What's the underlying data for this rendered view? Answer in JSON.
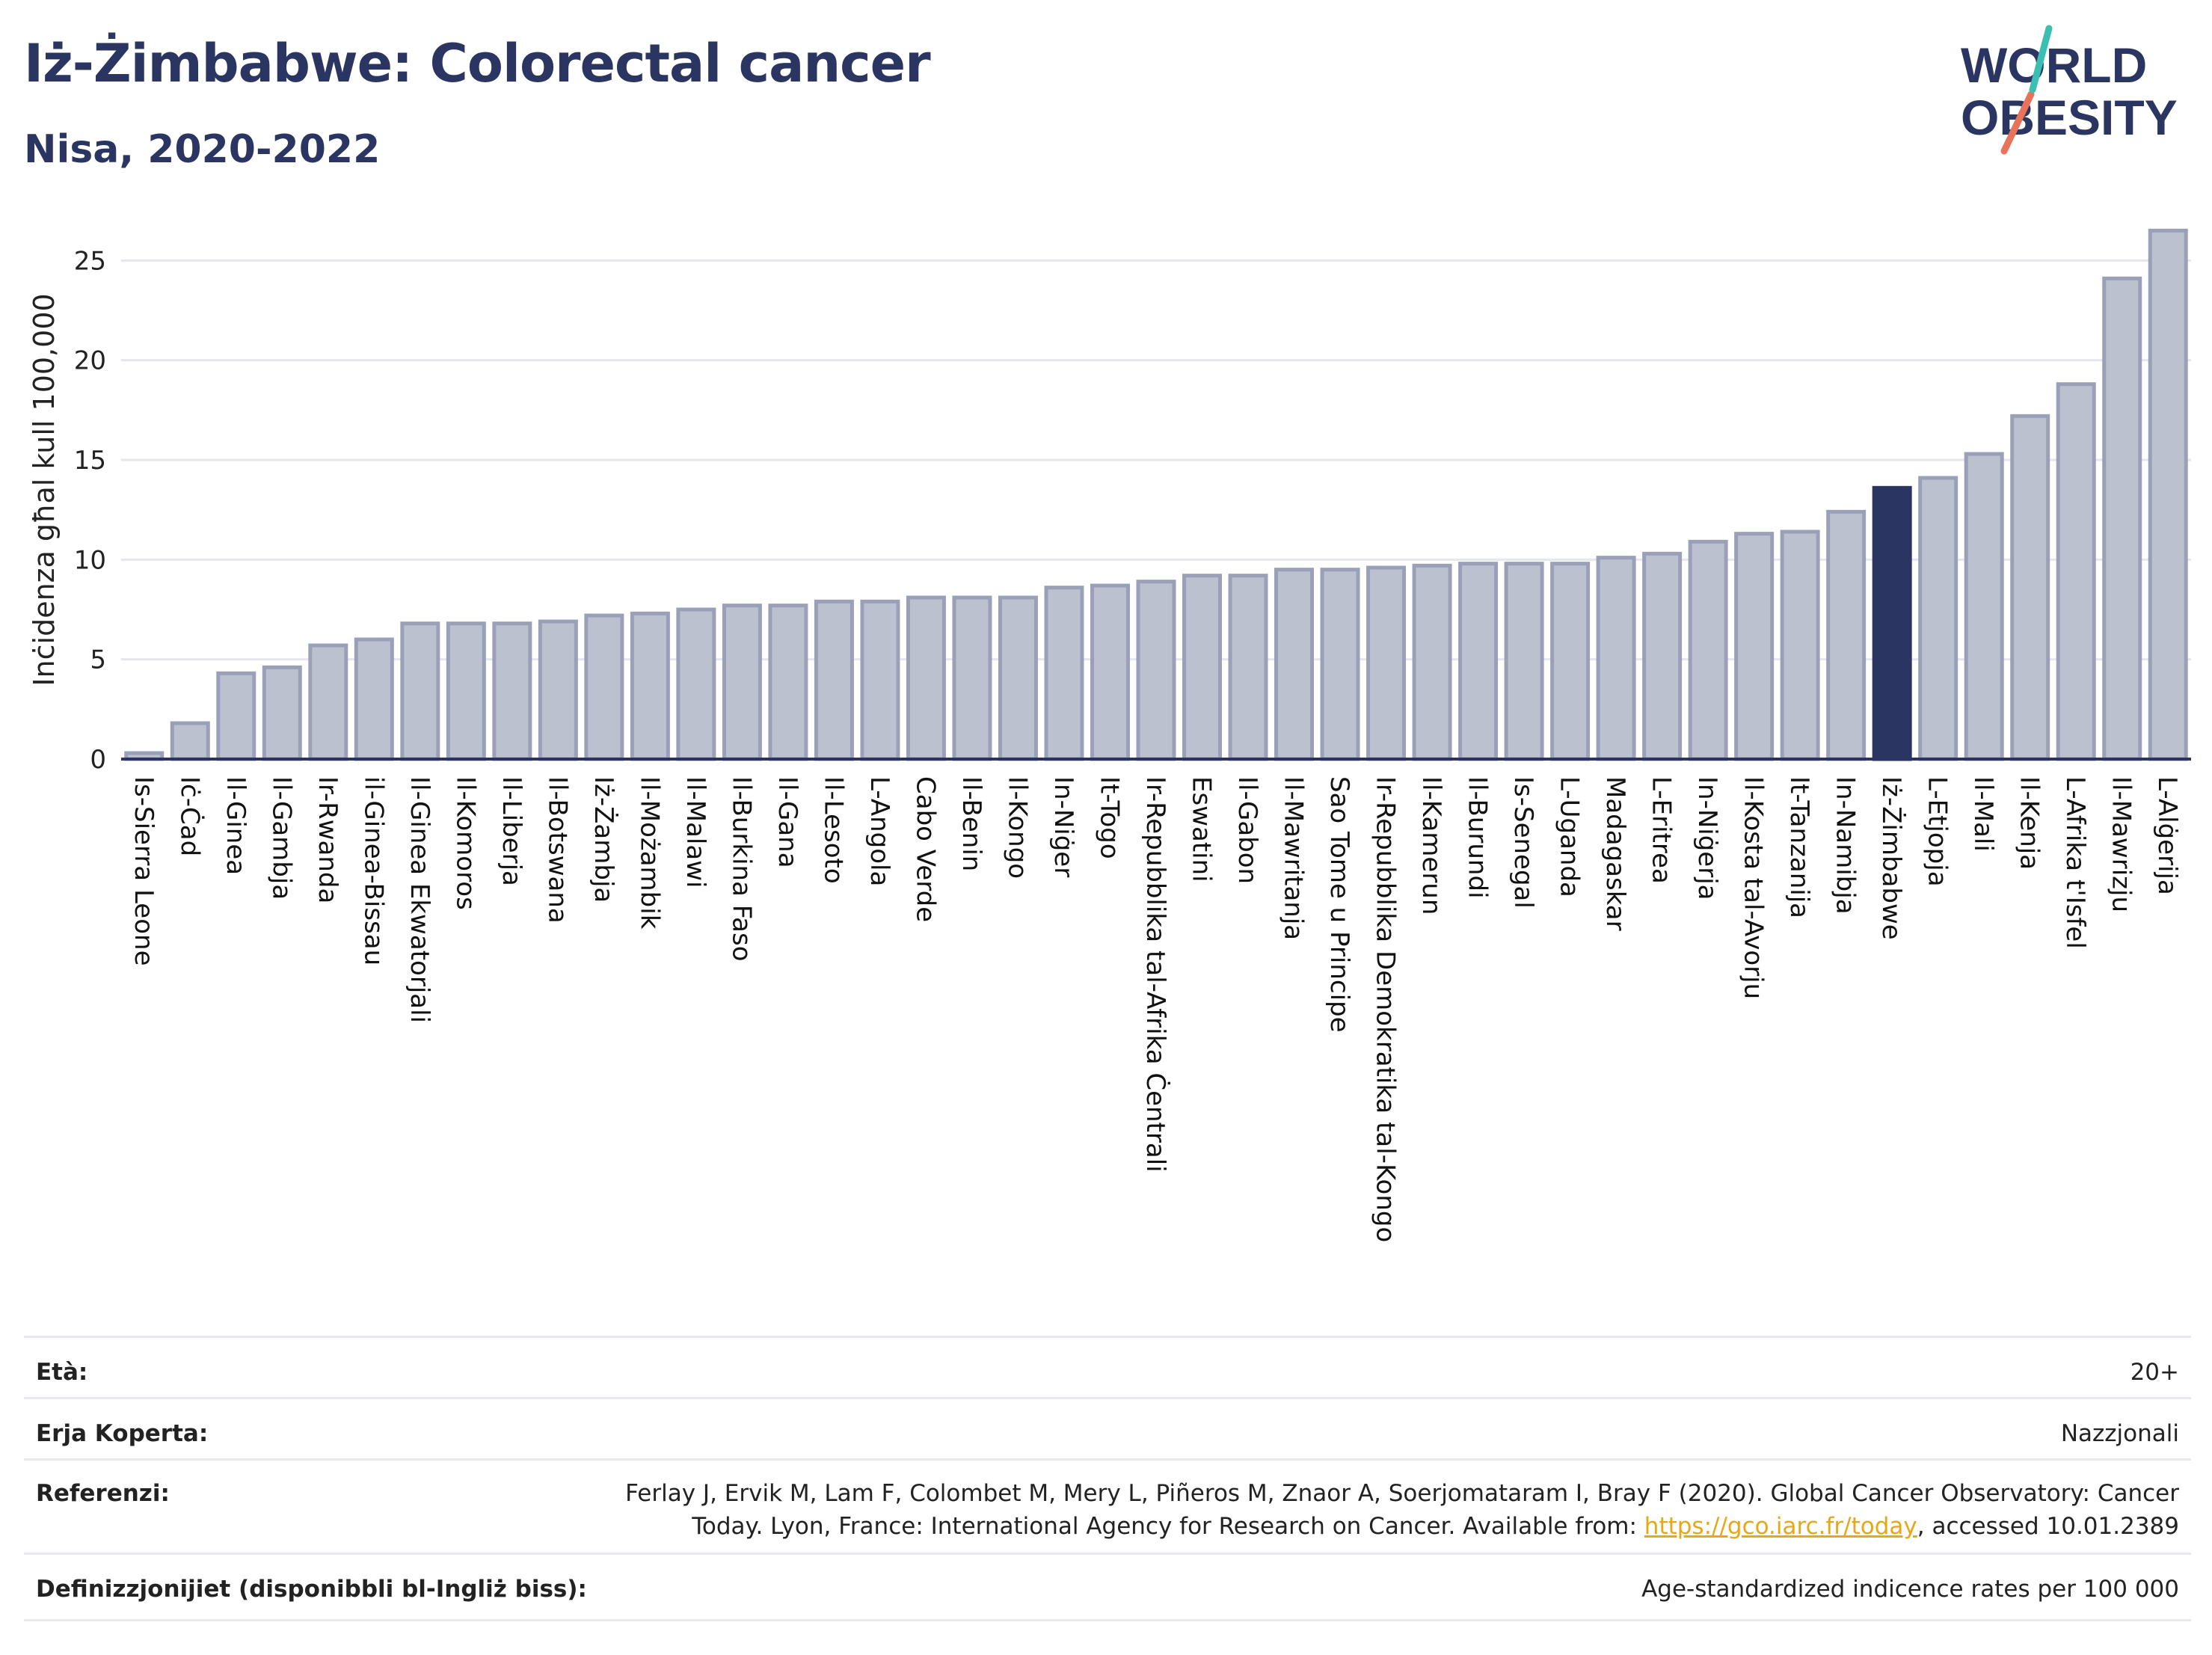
{
  "header": {
    "title": "Iż-Żimbabwe: Colorectal cancer",
    "subtitle": "Nisa, 2020-2022",
    "logo_line1": "WORLD",
    "logo_line2": "OBESITY"
  },
  "colors": {
    "bar": "#bcc1d0",
    "bar_stroke": "#9aa0b8",
    "highlight": "#2b3561",
    "grid": "#e6e6ee",
    "text": "#2b3561",
    "logo_teal": "#3bbfb3",
    "logo_coral": "#e8735a"
  },
  "chart_data": {
    "type": "bar",
    "ylabel": "Inċidenza għal kull 100,000",
    "ylim": [
      0,
      27
    ],
    "yticks": [
      0,
      5,
      10,
      15,
      20,
      25
    ],
    "grid": true,
    "highlight": "Iż-Żimbabwe",
    "categories": [
      "Is-Sierra Leone",
      "Iċ-Ċad",
      "Il-Ginea",
      "Il-Gambja",
      "Ir-Rwanda",
      "il-Ginea-Bissau",
      "Il-Ginea Ekwatorjali",
      "Il-Komoros",
      "Il-Liberja",
      "Il-Botswana",
      "Iż-Żambja",
      "Il-Możambik",
      "Il-Malawi",
      "Il-Burkina Faso",
      "Il-Gana",
      "Il-Lesoto",
      "L-Angola",
      "Cabo Verde",
      "Il-Benin",
      "Il-Kongo",
      "In-Niġer",
      "It-Togo",
      "Ir-Repubblika tal-Afrika Ċentrali",
      "Eswatini",
      "Il-Gabon",
      "Il-Mawritanja",
      "Sao Tome u Principe",
      "Ir-Repubblika Demokratika tal-Kongo",
      "Il-Kamerun",
      "Il-Burundi",
      "Is-Senegal",
      "L-Uganda",
      "Madagaskar",
      "L-Eritrea",
      "In-Niġerja",
      "Il-Kosta tal-Avorju",
      "It-Tanzanija",
      "In-Namibja",
      "Iż-Żimbabwe",
      "L-Etjopja",
      "Il-Mali",
      "Il-Kenja",
      "L-Afrika t'Isfel",
      "Il-Mawrizju",
      "L-Alġerija"
    ],
    "values": [
      0.3,
      1.8,
      4.3,
      4.6,
      5.7,
      6.0,
      6.8,
      6.8,
      6.8,
      6.9,
      7.2,
      7.3,
      7.5,
      7.7,
      7.7,
      7.9,
      7.9,
      8.1,
      8.1,
      8.1,
      8.6,
      8.7,
      8.9,
      9.2,
      9.2,
      9.5,
      9.5,
      9.6,
      9.7,
      9.8,
      9.8,
      9.8,
      10.1,
      10.3,
      10.9,
      11.3,
      11.4,
      12.4,
      13.6,
      14.1,
      15.3,
      17.2,
      18.8,
      24.1,
      26.5
    ]
  },
  "meta": {
    "age_label": "Età:",
    "age_value": "20+",
    "area_label": "Erja Koperta:",
    "area_value": "Nazzjonali",
    "ref_label": "Referenzi:",
    "ref_line1": "Ferlay J, Ervik M, Lam F, Colombet M, Mery L, Piñeros M, Znaor A, Soerjomataram I, Bray F (2020). Global Cancer Observatory: Cancer",
    "ref_line2a": "Today. Lyon, France: International Agency for Research on Cancer. Available from: ",
    "ref_link": "https://gco.iarc.fr/today",
    "ref_line2b": ", accessed 10.01.2389",
    "def_label": "Definizzjonijiet (disponibbli bl-Ingliż biss):",
    "def_value": "Age-standardized indicence rates per 100 000"
  }
}
